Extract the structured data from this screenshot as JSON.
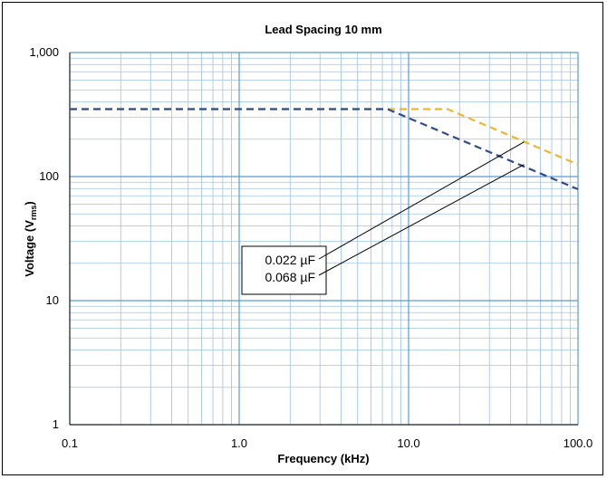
{
  "chart_data": {
    "type": "line",
    "title": "Lead Spacing 10 mm",
    "xlabel": "Frequency (kHz)",
    "ylabel": {
      "main": "Voltage (V",
      "subscript": "rms",
      "close": ")"
    },
    "x_scale": "log",
    "y_scale": "log",
    "xlim": [
      0.1,
      100
    ],
    "ylim": [
      1,
      1000
    ],
    "x_ticks": [
      {
        "value": 0.1,
        "label": "0.1"
      },
      {
        "value": 1,
        "label": "1.0"
      },
      {
        "value": 10,
        "label": "10.0"
      },
      {
        "value": 100,
        "label": "100.0"
      }
    ],
    "y_ticks": [
      {
        "value": 1,
        "label": "1"
      },
      {
        "value": 10,
        "label": "10"
      },
      {
        "value": 100,
        "label": "100"
      },
      {
        "value": 1000,
        "label": "1,000"
      }
    ],
    "grid": true,
    "series": [
      {
        "name": "0.022 µF",
        "color": "#F2B52A",
        "style": "dashed",
        "points": [
          [
            0.1,
            350
          ],
          [
            17,
            350
          ],
          [
            100,
            125
          ]
        ]
      },
      {
        "name": "0.068 µF",
        "color": "#2E4C8E",
        "style": "dashed",
        "points": [
          [
            0.1,
            350
          ],
          [
            7.5,
            350
          ],
          [
            100,
            79
          ]
        ]
      }
    ],
    "legend_position": "center",
    "callout_targets": [
      {
        "series": "0.022 µF",
        "x": 48,
        "y": 190
      },
      {
        "series": "0.068 µF",
        "x": 48,
        "y": 125
      }
    ]
  },
  "colors": {
    "grid_minor": "#9DC3E6",
    "grid_major": "#5B9BD5",
    "axis": "#000000"
  }
}
